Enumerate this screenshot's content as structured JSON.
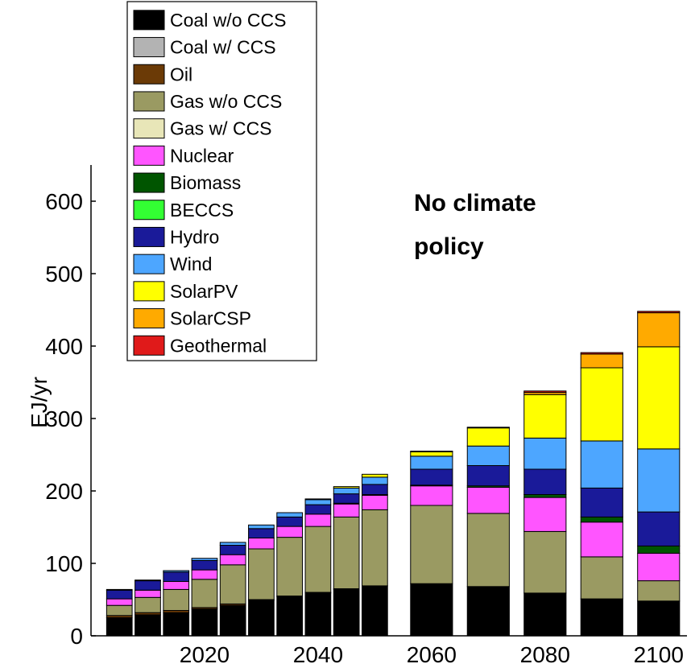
{
  "chart_data": {
    "type": "bar",
    "stacked": true,
    "title": "",
    "annotation": [
      "No climate",
      "policy"
    ],
    "xlabel": "",
    "ylabel": "EJ/yr",
    "ylim": [
      0,
      650
    ],
    "yticks": [
      0,
      100,
      200,
      300,
      400,
      500,
      600
    ],
    "xtick_labels": [
      "2020",
      "2040",
      "2060",
      "2080",
      "2100"
    ],
    "xticks": [
      2020,
      2040,
      2060,
      2080,
      2100
    ],
    "grid": false,
    "legend_position": "top-left",
    "x": [
      2005,
      2010,
      2015,
      2020,
      2025,
      2030,
      2035,
      2040,
      2045,
      2050,
      2060,
      2070,
      2080,
      2090,
      2100
    ],
    "series": [
      {
        "name": "Coal w/o CCS",
        "color": "#000000",
        "values": [
          25,
          29,
          32,
          37,
          42,
          49,
          54,
          59,
          64,
          69,
          72,
          68,
          59,
          51,
          48
        ]
      },
      {
        "name": "Coal w/ CCS",
        "color": "#b3b3b3",
        "values": [
          0,
          0,
          0,
          0,
          0,
          0,
          0,
          0,
          0,
          0,
          0,
          0,
          0,
          0,
          0
        ]
      },
      {
        "name": "Oil",
        "color": "#6b3a06",
        "values": [
          3,
          3,
          3,
          2,
          2,
          1,
          1,
          1,
          1,
          0,
          0,
          0,
          0,
          0,
          0
        ]
      },
      {
        "name": "Gas w/o CCS",
        "color": "#9a9a62",
        "values": [
          14,
          21,
          29,
          39,
          54,
          70,
          81,
          91,
          99,
          105,
          108,
          101,
          85,
          58,
          28
        ]
      },
      {
        "name": "Gas w/ CCS",
        "color": "#e8e6b8",
        "values": [
          0,
          0,
          0,
          0,
          0,
          0,
          0,
          0,
          0,
          0,
          0,
          0,
          0,
          0,
          0
        ]
      },
      {
        "name": "Nuclear",
        "color": "#ff55ff",
        "values": [
          9,
          10,
          11,
          13,
          14,
          15,
          15,
          17,
          18,
          20,
          27,
          36,
          47,
          48,
          38
        ]
      },
      {
        "name": "Biomass",
        "color": "#005500",
        "values": [
          0,
          0,
          0,
          0,
          0,
          0,
          0,
          0,
          1,
          1,
          1,
          2,
          4,
          7,
          10
        ]
      },
      {
        "name": "BECCS",
        "color": "#33ff33",
        "values": [
          0,
          0,
          0,
          0,
          0,
          0,
          0,
          0,
          0,
          0,
          0,
          0,
          0,
          0,
          0
        ]
      },
      {
        "name": "Hydro",
        "color": "#1a1a99",
        "values": [
          12,
          13,
          13,
          13,
          13,
          13,
          13,
          13,
          13,
          14,
          22,
          28,
          35,
          40,
          47
        ]
      },
      {
        "name": "Wind",
        "color": "#4da6ff",
        "values": [
          1,
          1,
          2,
          3,
          4,
          5,
          6,
          7,
          8,
          10,
          18,
          27,
          43,
          65,
          87
        ]
      },
      {
        "name": "SolarPV",
        "color": "#ffff00",
        "values": [
          0,
          0,
          0,
          0,
          0,
          0,
          0,
          1,
          2,
          4,
          6,
          25,
          60,
          101,
          141
        ]
      },
      {
        "name": "SolarCSP",
        "color": "#ffaa00",
        "values": [
          0,
          0,
          0,
          0,
          0,
          0,
          0,
          0,
          0,
          0,
          0,
          0,
          3,
          19,
          47
        ]
      },
      {
        "name": "Geothermal",
        "color": "#e01a1a",
        "values": [
          0,
          0,
          0,
          0,
          0,
          0,
          0,
          0,
          0,
          0,
          1,
          1,
          2,
          2,
          2
        ]
      }
    ]
  }
}
